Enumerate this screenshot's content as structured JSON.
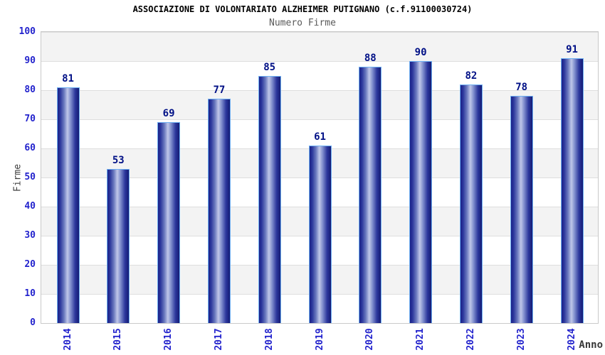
{
  "chart_data": {
    "type": "bar",
    "title": "ASSOCIAZIONE DI VOLONTARIATO ALZHEIMER PUTIGNANO (c.f.91100030724)",
    "subtitle": "Numero Firme",
    "xlabel": "Anno",
    "ylabel": "Firme",
    "categories": [
      "2014",
      "2015",
      "2016",
      "2017",
      "2018",
      "2019",
      "2020",
      "2021",
      "2022",
      "2023",
      "2024"
    ],
    "values": [
      81,
      53,
      69,
      77,
      85,
      61,
      88,
      90,
      82,
      78,
      91
    ],
    "ylim": [
      0,
      100
    ],
    "ytick_step": 10,
    "yticks": [
      0,
      10,
      20,
      30,
      40,
      50,
      60,
      70,
      80,
      90,
      100
    ],
    "grid": true,
    "legend": "none",
    "colors": {
      "bar_dark": "#141b74",
      "bar_mid": "#2c379c",
      "bar_highlight": "#c0c7e9",
      "bar_border": "#6fb0f3",
      "value_label": "#001086",
      "tick_label": "#2323cd",
      "band_gray": "#f3f3f3",
      "band_white": "#ffffff",
      "grid_line": "#dedede",
      "plot_border": "#c9c9c9",
      "title": "#000000",
      "subtitle": "#5a5a5a",
      "axis_title": "#3f3f3f"
    }
  }
}
